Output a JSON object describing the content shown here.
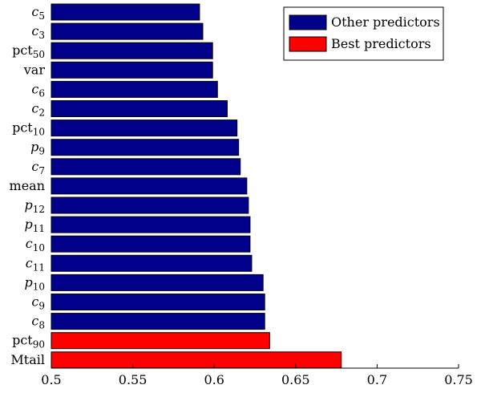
{
  "chart_data": {
    "type": "bar",
    "orientation": "horizontal",
    "categories": [
      {
        "base": "c",
        "sub": "5",
        "italic": true
      },
      {
        "base": "c",
        "sub": "3",
        "italic": true
      },
      {
        "base": "pct",
        "sub": "50",
        "italic": false
      },
      {
        "base": "var",
        "sub": "",
        "italic": false
      },
      {
        "base": "c",
        "sub": "6",
        "italic": true
      },
      {
        "base": "c",
        "sub": "2",
        "italic": true
      },
      {
        "base": "pct",
        "sub": "10",
        "italic": false
      },
      {
        "base": "p",
        "sub": "9",
        "italic": true
      },
      {
        "base": "c",
        "sub": "7",
        "italic": true
      },
      {
        "base": "mean",
        "sub": "",
        "italic": false
      },
      {
        "base": "p",
        "sub": "12",
        "italic": true
      },
      {
        "base": "p",
        "sub": "11",
        "italic": true
      },
      {
        "base": "c",
        "sub": "10",
        "italic": true
      },
      {
        "base": "c",
        "sub": "11",
        "italic": true
      },
      {
        "base": "p",
        "sub": "10",
        "italic": true
      },
      {
        "base": "c",
        "sub": "9",
        "italic": true
      },
      {
        "base": "c",
        "sub": "8",
        "italic": true
      },
      {
        "base": "pct",
        "sub": "90",
        "italic": false
      },
      {
        "base": "Mtail",
        "sub": "",
        "italic": false
      }
    ],
    "values": [
      0.591,
      0.593,
      0.599,
      0.599,
      0.602,
      0.608,
      0.614,
      0.615,
      0.616,
      0.62,
      0.621,
      0.622,
      0.622,
      0.623,
      0.63,
      0.631,
      0.631,
      0.634,
      0.678
    ],
    "groups": [
      "other",
      "other",
      "other",
      "other",
      "other",
      "other",
      "other",
      "other",
      "other",
      "other",
      "other",
      "other",
      "other",
      "other",
      "other",
      "other",
      "other",
      "best",
      "best"
    ],
    "series": [
      {
        "key": "other",
        "name": "Other predictors",
        "color": "#00008b"
      },
      {
        "key": "best",
        "name": "Best predictors",
        "color": "#ff0000"
      }
    ],
    "xlim": [
      0.5,
      0.75
    ],
    "xticks": [
      0.5,
      0.55,
      0.6,
      0.65,
      0.7,
      0.75
    ],
    "xtick_labels": [
      "0.5",
      "0.55",
      "0.6",
      "0.65",
      "0.7",
      "0.75"
    ],
    "title": "",
    "xlabel": "",
    "ylabel": "",
    "grid": false,
    "legend": "top-right"
  }
}
